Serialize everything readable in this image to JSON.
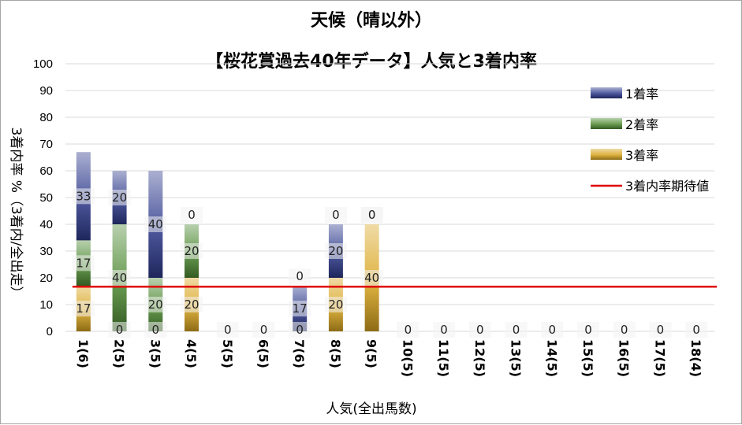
{
  "chart_data": {
    "type": "bar",
    "stacked": true,
    "title": "天候（晴以外）",
    "subtitle": "【桜花賞過去40年データ】人気と3着内率",
    "xlabel": "人気(全出馬数)",
    "ylabel": "3着内率 %（3着内/全出走）",
    "ylim": [
      0,
      100
    ],
    "yticks": [
      0,
      10,
      20,
      30,
      40,
      50,
      60,
      70,
      80,
      90,
      100
    ],
    "grid": true,
    "legend_position": "right",
    "categories": [
      "1(6)",
      "2(5)",
      "3(5)",
      "4(5)",
      "5(5)",
      "6(5)",
      "7(6)",
      "8(5)",
      "9(5)",
      "10(5)",
      "11(5)",
      "12(5)",
      "13(5)",
      "14(5)",
      "15(5)",
      "16(5)",
      "17(5)",
      "18(4)"
    ],
    "series": [
      {
        "name": "3着率",
        "color": "#d9a520",
        "values": [
          17,
          0,
          0,
          20,
          0,
          0,
          0,
          20,
          40,
          0,
          0,
          0,
          0,
          0,
          0,
          0,
          0,
          0
        ]
      },
      {
        "name": "2着率",
        "color": "#4e8a34",
        "values": [
          17,
          40,
          20,
          20,
          0,
          0,
          0,
          0,
          0,
          0,
          0,
          0,
          0,
          0,
          0,
          0,
          0,
          0
        ]
      },
      {
        "name": "1着率",
        "color": "#2e3a8c",
        "values": [
          33,
          20,
          40,
          0,
          0,
          0,
          17,
          20,
          0,
          0,
          0,
          0,
          0,
          0,
          0,
          0,
          0,
          0
        ]
      }
    ],
    "reference_line": {
      "name": "3着内率期待値",
      "color": "#e00000",
      "value": 16.7
    }
  }
}
